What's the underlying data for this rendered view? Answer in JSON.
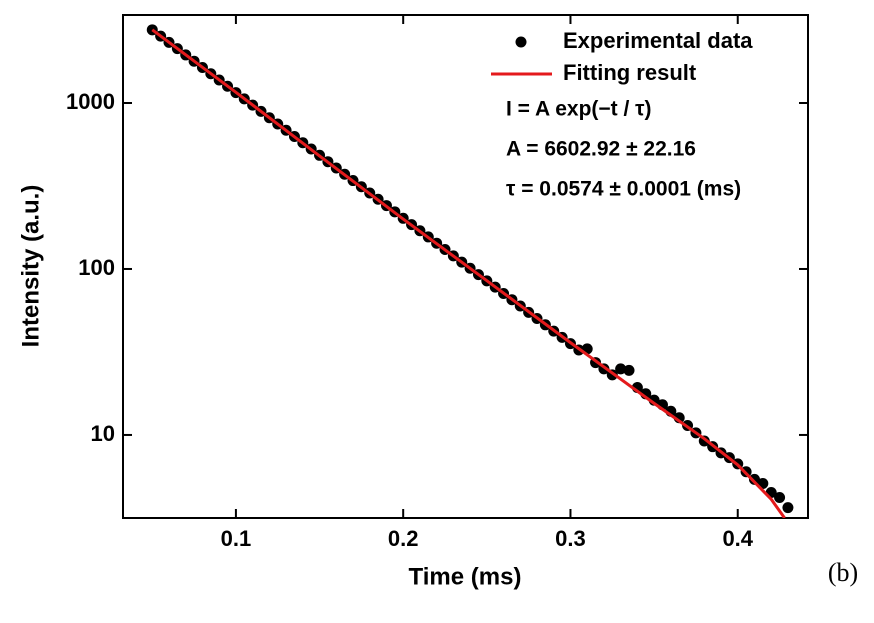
{
  "chart_data": {
    "type": "scatter",
    "xlabel": "Time (ms)",
    "ylabel": "Intensity (a.u.)",
    "xlim": [
      0.0325,
      0.442
    ],
    "ylim": [
      3.16,
      3390
    ],
    "xticks": [
      0.1,
      0.2,
      0.3,
      0.4
    ],
    "yticks": [
      10,
      100,
      1000
    ],
    "yscale": "log",
    "grid": false,
    "legend": "top-right",
    "series": [
      {
        "name": "Experimental data",
        "color": "#000000",
        "type": "scatter",
        "x": [
          0.05,
          0.055,
          0.06,
          0.065,
          0.07,
          0.075,
          0.08,
          0.085,
          0.09,
          0.095,
          0.1,
          0.105,
          0.11,
          0.115,
          0.12,
          0.125,
          0.13,
          0.135,
          0.14,
          0.145,
          0.15,
          0.155,
          0.16,
          0.165,
          0.17,
          0.175,
          0.18,
          0.185,
          0.19,
          0.195,
          0.2,
          0.205,
          0.21,
          0.215,
          0.22,
          0.225,
          0.23,
          0.235,
          0.24,
          0.245,
          0.25,
          0.255,
          0.26,
          0.265,
          0.27,
          0.275,
          0.28,
          0.285,
          0.29,
          0.295,
          0.3,
          0.305,
          0.31,
          0.315,
          0.32,
          0.325,
          0.33,
          0.335,
          0.34,
          0.345,
          0.35,
          0.355,
          0.36,
          0.365,
          0.37,
          0.375,
          0.38,
          0.385,
          0.39,
          0.395,
          0.4,
          0.405,
          0.41,
          0.415,
          0.42,
          0.425,
          0.43
        ],
        "values": [
          2760,
          2530,
          2319,
          2126,
          1948,
          1786,
          1637,
          1500,
          1375,
          1261,
          1155,
          1059,
          971,
          890,
          815,
          747,
          685,
          628,
          576,
          528,
          484,
          443,
          406,
          372,
          341,
          313,
          287,
          263,
          241,
          221,
          202,
          185,
          170,
          156,
          143,
          131,
          120,
          110,
          101,
          92.5,
          84.8,
          77.7,
          71.2,
          65.3,
          59.8,
          54.8,
          50.3,
          46.1,
          42.2,
          38.7,
          35.5,
          32.5,
          33,
          27.3,
          25,
          23,
          25,
          24.5,
          19.3,
          17.7,
          16.2,
          15.2,
          13.9,
          12.7,
          11.4,
          10.3,
          9.2,
          8.5,
          7.8,
          7.3,
          6.7,
          6.0,
          5.4,
          5.1,
          4.5,
          4.2,
          3.65
        ]
      },
      {
        "name": "Fitting result",
        "color": "#e41a1c",
        "type": "line",
        "x": [
          0.05,
          0.1,
          0.15,
          0.2,
          0.25,
          0.3,
          0.35,
          0.38,
          0.4,
          0.42,
          0.428
        ],
        "values": [
          2760,
          1160,
          480,
          200,
          85,
          36,
          15.5,
          9.5,
          6.6,
          4.1,
          3.16
        ]
      }
    ],
    "annotations": [
      "I = A exp(−t / τ)",
      "A = 6602.92 ± 22.16",
      "τ = 0.0574 ± 0.0001 (ms)"
    ],
    "panel_label": "(b)"
  }
}
